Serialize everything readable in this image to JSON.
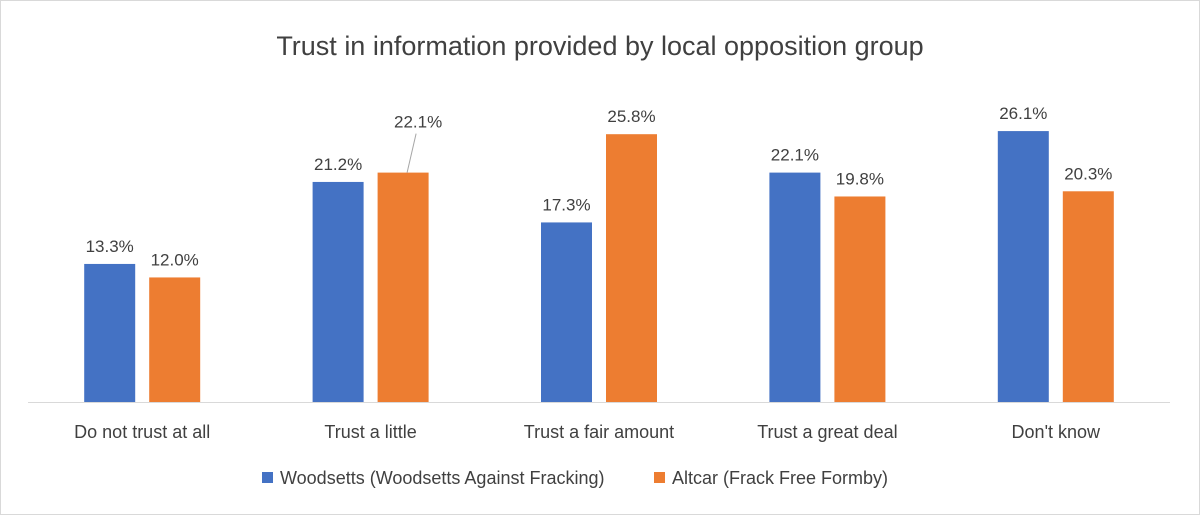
{
  "chart_data": {
    "type": "bar",
    "title": "Trust in information provided by local opposition group",
    "categories": [
      "Do not trust at all",
      "Trust a little",
      "Trust a fair amount",
      "Trust a great deal",
      "Don't know"
    ],
    "series": [
      {
        "name": "Woodsetts (Woodsetts Against Fracking)",
        "color": "#4472C4",
        "values": [
          13.3,
          21.2,
          17.3,
          22.1,
          26.1
        ],
        "labels": [
          "13.3%",
          "21.2%",
          "17.3%",
          "22.1%",
          "26.1%"
        ]
      },
      {
        "name": "Altcar (Frack Free Formby)",
        "color": "#ED7D31",
        "values": [
          12.0,
          22.1,
          25.8,
          19.8,
          20.3
        ],
        "labels": [
          "12.0%",
          "22.1%",
          "25.8%",
          "19.8%",
          "20.3%"
        ]
      }
    ],
    "xlabel": "",
    "ylabel": "",
    "ylim": [
      0,
      30
    ],
    "grid": false,
    "legend": "bottom"
  }
}
